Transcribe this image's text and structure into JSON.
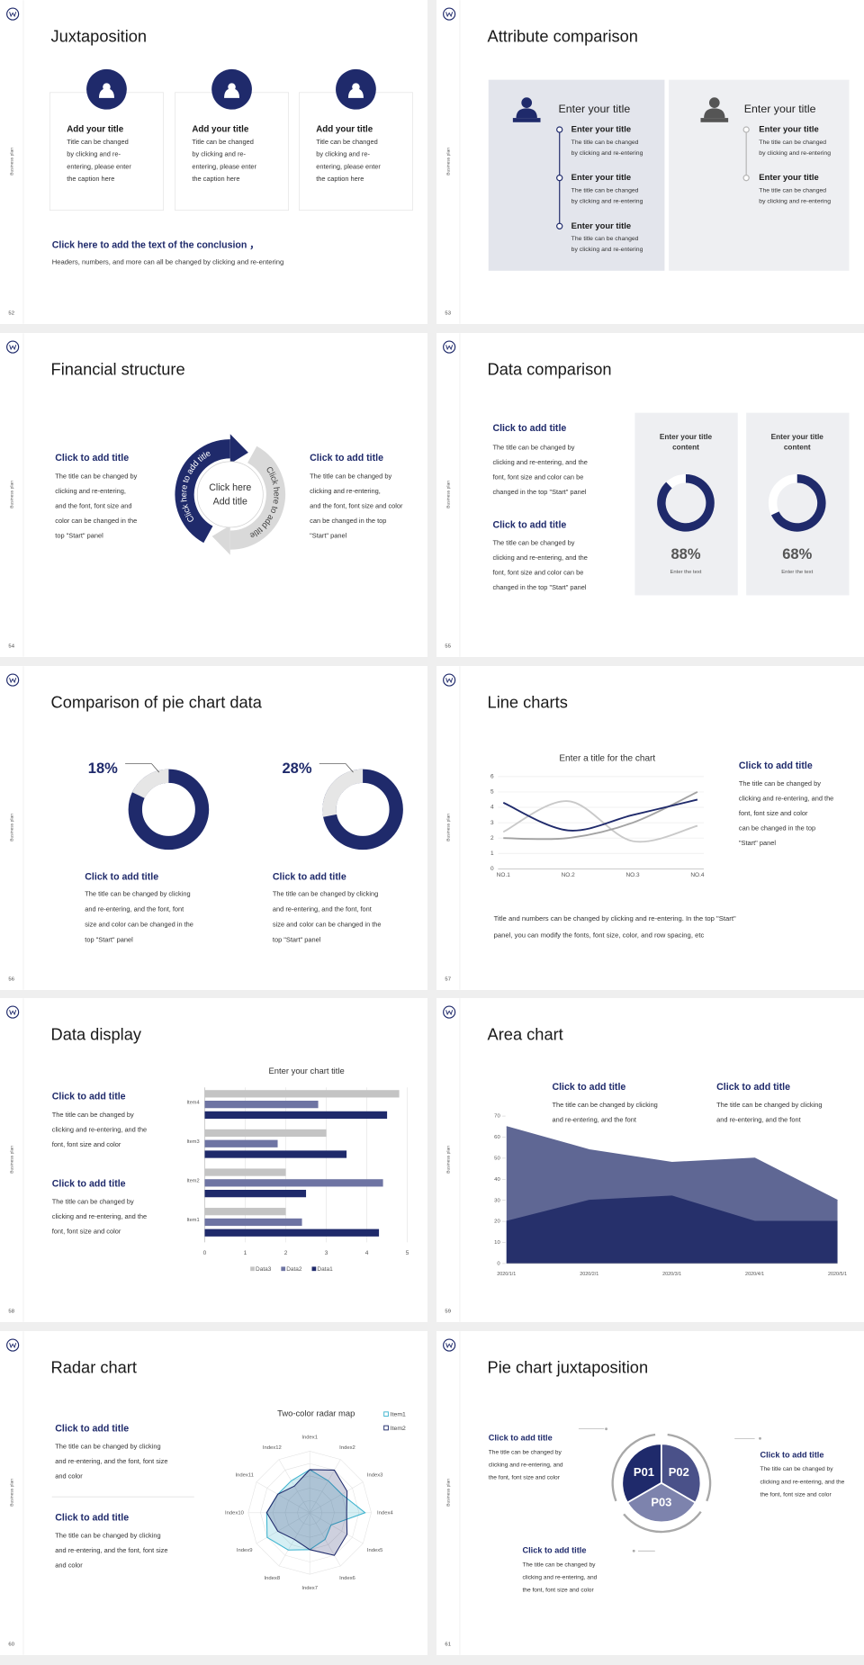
{
  "slides": [
    {
      "number": "52",
      "side_label": "Business plan",
      "title": "Juxtaposition",
      "type": "cards",
      "cards": [
        {
          "title": "Add your title",
          "body": [
            "Title can be changed",
            "by clicking and re-",
            "entering, please enter",
            "the caption here"
          ]
        },
        {
          "title": "Add your title",
          "body": [
            "Title can be changed",
            "by clicking and re-",
            "entering, please enter",
            "the caption here"
          ]
        },
        {
          "title": "Add your title",
          "body": [
            "Title can be changed",
            "by clicking and re-",
            "entering, please enter",
            "the caption here"
          ]
        }
      ],
      "conclusion": {
        "title": "Click here to add the text of the conclusion ，",
        "body": "Headers, numbers, and more can all be changed by clicking and re-entering"
      }
    },
    {
      "number": "53",
      "side_label": "Business plan",
      "title": "Attribute comparison",
      "type": "attributes",
      "panels": [
        {
          "title": "Enter your title",
          "items": [
            {
              "title": "Enter your title",
              "body": [
                "The title can be changed",
                "by clicking and re-entering"
              ]
            },
            {
              "title": "Enter your title",
              "body": [
                "The title can be changed",
                "by clicking and re-entering"
              ]
            },
            {
              "title": "Enter your title",
              "body": [
                "The title can be changed",
                "by clicking and re-entering"
              ]
            }
          ]
        },
        {
          "title": "Enter your title",
          "items": [
            {
              "title": "Enter your title",
              "body": [
                "The title can be changed",
                "by clicking and re-entering"
              ]
            },
            {
              "title": "Enter your title",
              "body": [
                "The title can be changed",
                "by clicking and re-entering"
              ]
            }
          ]
        }
      ]
    },
    {
      "number": "54",
      "side_label": "Business plan",
      "title": "Financial structure",
      "type": "cycle",
      "left": {
        "title": "Click to add title",
        "body": [
          "The title can be changed by",
          "clicking and re-entering,",
          "and the font, font size and",
          "color can be changed in the",
          "top \"Start\" panel"
        ]
      },
      "right": {
        "title": "Click to add title",
        "body": [
          "The title can be changed by",
          "clicking and re-entering,",
          "and the font, font size and color",
          "can be changed in the top",
          "\"Start\" panel"
        ]
      },
      "center": [
        "Click here",
        "Add title"
      ],
      "arc_labels": [
        "Click here to add title",
        "Click here to add title"
      ]
    },
    {
      "number": "55",
      "side_label": "Business plan",
      "title": "Data comparison",
      "type": "donut-panels",
      "texts": [
        {
          "title": "Click to add title",
          "body": [
            "The title can be changed by",
            "clicking and re-entering, and the",
            "font, font size and color can be",
            "changed in the top \"Start\" panel"
          ]
        },
        {
          "title": "Click to add title",
          "body": [
            "The title can be changed by",
            "clicking and re-entering, and the",
            "font, font size and color can be",
            "changed in the top \"Start\" panel"
          ]
        }
      ],
      "panels": [
        {
          "title": [
            "Enter your title",
            "content"
          ],
          "value": 88,
          "value_label": "88%",
          "caption": "Enter the text",
          "color": "#1f2a6b"
        },
        {
          "title": [
            "Enter your title",
            "content"
          ],
          "value": 68,
          "value_label": "68%",
          "caption": "Enter the text",
          "color": "#1f2a6b"
        }
      ]
    },
    {
      "number": "56",
      "side_label": "Business plan",
      "title": "Comparison of pie chart data",
      "type": "donuts",
      "items": [
        {
          "value": 18,
          "value_label": "18%",
          "color": "#e6e6e6",
          "title": "Click to add title",
          "body": [
            "The title can be changed by clicking",
            "and re-entering, and the font, font",
            "size and color can be changed in the",
            "top \"Start\" panel"
          ]
        },
        {
          "value": 28,
          "value_label": "28%",
          "color": "#e6e6e6",
          "title": "Click to add title",
          "body": [
            "The title can be changed by clicking",
            "and re-entering, and the font, font",
            "size and color can be changed in the",
            "top \"Start\" panel"
          ]
        }
      ]
    },
    {
      "number": "57",
      "side_label": "Business plan",
      "title": "Line charts",
      "type": "line",
      "chart": {
        "type": "line",
        "title": "Enter a title for the chart",
        "categories": [
          "NO.1",
          "NO.2",
          "NO.3",
          "NO.4"
        ],
        "series": [
          {
            "color": "#c9c9c9",
            "values": [
              2.4,
              4.4,
              1.8,
              2.8
            ]
          },
          {
            "color": "#a3a3a3",
            "values": [
              2,
              2,
              3,
              5
            ]
          },
          {
            "color": "#1f2a6b",
            "values": [
              4.3,
              2.5,
              3.5,
              4.5
            ]
          }
        ],
        "ylim": [
          0,
          6
        ],
        "yticks": [
          0,
          1,
          2,
          3,
          4,
          5,
          6
        ],
        "grid": true,
        "smooth": true
      },
      "side": {
        "title": "Click to add title",
        "body": [
          "The title can be changed by",
          "clicking and re-entering, and the",
          "font, font size and color",
          "can be changed in the top",
          "\"Start\" panel"
        ]
      },
      "note": [
        "Title and numbers can be changed by clicking and re-entering. In the top \"Start\"",
        "panel, you can modify the fonts, font size, color, and row spacing, etc"
      ]
    },
    {
      "number": "58",
      "side_label": "Business plan",
      "title": "Data display",
      "type": "hbar",
      "texts": [
        {
          "title": "Click to add title",
          "body": [
            "The title can be changed by",
            "clicking and re-entering, and the",
            "font, font size and color"
          ]
        },
        {
          "title": "Click to add title",
          "body": [
            "The title can be changed by",
            "clicking and re-entering, and the",
            "font, font size and color"
          ]
        }
      ],
      "chart": {
        "type": "bar",
        "orientation": "horizontal",
        "title": "Enter your chart title",
        "categories": [
          "Item1",
          "Item2",
          "Item3",
          "Item4"
        ],
        "series": [
          {
            "name": "Data1",
            "color": "#1f2a6b",
            "values": [
              4.3,
              2.5,
              3.5,
              4.5
            ]
          },
          {
            "name": "Data2",
            "color": "#6e74a3",
            "values": [
              2.4,
              4.4,
              1.8,
              2.8
            ]
          },
          {
            "name": "Data3",
            "color": "#c4c4c4",
            "values": [
              2,
              2,
              3,
              4.8
            ]
          }
        ],
        "xlim": [
          0,
          5
        ],
        "xticks": [
          0,
          1,
          2,
          3,
          4,
          5
        ],
        "grid": true,
        "legend": "bottom"
      }
    },
    {
      "number": "59",
      "side_label": "Business plan",
      "title": "Area chart",
      "type": "area",
      "texts": [
        {
          "title": "Click to add title",
          "body": [
            "The title can be changed by clicking",
            "and re-entering, and the font"
          ]
        },
        {
          "title": "Click to add title",
          "body": [
            "The title can be changed by clicking",
            "and re-entering, and the font"
          ]
        }
      ],
      "chart": {
        "type": "area",
        "x": [
          "2020/1/1",
          "2020/2/1",
          "2020/3/1",
          "2020/4/1",
          "2020/5/1"
        ],
        "series": [
          {
            "color": "#5f6794",
            "values": [
              65,
              54,
              48,
              50,
              30
            ]
          },
          {
            "color": "#26306b",
            "values": [
              20,
              30,
              32,
              20,
              20
            ]
          }
        ],
        "ylim": [
          0,
          70
        ],
        "yticks": [
          0,
          10,
          20,
          30,
          40,
          50,
          60,
          70
        ]
      }
    },
    {
      "number": "60",
      "side_label": "Business plan",
      "title": "Radar chart",
      "type": "radar",
      "texts": [
        {
          "title": "Click to add title",
          "body": [
            "The title can be changed by clicking",
            "and re-entering, and the font, font size",
            "and color"
          ]
        },
        {
          "title": "Click to add title",
          "body": [
            "The title can be changed by clicking",
            "and re-entering, and the font, font size",
            "and color"
          ]
        }
      ],
      "chart": {
        "type": "radar",
        "title": "Two-color radar map",
        "categories": [
          "Index1",
          "Index2",
          "Index3",
          "Index4",
          "Index5",
          "Index6",
          "Index7",
          "Index8",
          "Index9",
          "Index10",
          "Index11",
          "Index12"
        ],
        "series": [
          {
            "name": "Item1",
            "color": "#3fb4cf",
            "values": [
              3.5,
              3,
              3,
              4.5,
              2,
              2.5,
              3,
              3.5,
              4,
              3.5,
              3,
              3
            ]
          },
          {
            "name": "Item2",
            "color": "#1f2a6b",
            "values": [
              3.5,
              4,
              3.5,
              3,
              3.5,
              4,
              3,
              2.5,
              3,
              3.5,
              3,
              2.5
            ]
          }
        ],
        "rlim": [
          0,
          5
        ],
        "legend": "top-right"
      }
    },
    {
      "number": "61",
      "side_label": "Business plan",
      "title": "Pie chart juxtaposition",
      "type": "pie-diagram",
      "labels": [
        "P01",
        "P02",
        "P03"
      ],
      "texts": [
        {
          "title": "Click to add title",
          "body": [
            "The title can be changed by",
            "clicking and re-entering, and",
            "the font, font size and color"
          ]
        },
        {
          "title": "Click to add title",
          "body": [
            "The title can be changed by",
            "clicking and re-entering, and the",
            "the font, font size and color"
          ]
        },
        {
          "title": "Click to add title",
          "body": [
            "The title can be changed by",
            "clicking and re-entering, and",
            "the font, font size and color"
          ]
        }
      ]
    }
  ]
}
